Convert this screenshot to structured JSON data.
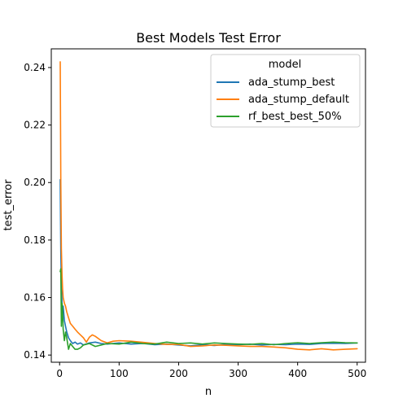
{
  "chart_data": {
    "type": "line",
    "title": "Best Models Test Error",
    "xlabel": "n",
    "ylabel": "test_error",
    "xlim": [
      -14,
      514
    ],
    "ylim": [
      0.1375,
      0.2465
    ],
    "xticks": [
      0,
      100,
      200,
      300,
      400,
      500
    ],
    "yticks": [
      0.14,
      0.16,
      0.18,
      0.2,
      0.22,
      0.24
    ],
    "ytick_labels": [
      "0.14",
      "0.16",
      "0.18",
      "0.20",
      "0.22",
      "0.24"
    ],
    "legend": {
      "title": "model",
      "position": "top-right"
    },
    "series": [
      {
        "name": "ada_stump_best",
        "color": "#1f77b4",
        "x": [
          1,
          2,
          3,
          4,
          5,
          6,
          8,
          10,
          12,
          15,
          18,
          22,
          26,
          30,
          35,
          40,
          50,
          60,
          70,
          80,
          100,
          120,
          140,
          160,
          180,
          200,
          220,
          240,
          260,
          280,
          300,
          320,
          340,
          360,
          380,
          400,
          420,
          440,
          460,
          480,
          500
        ],
        "y": [
          0.201,
          0.176,
          0.165,
          0.158,
          0.155,
          0.157,
          0.152,
          0.15,
          0.148,
          0.146,
          0.145,
          0.144,
          0.1445,
          0.1438,
          0.1442,
          0.1435,
          0.1442,
          0.1445,
          0.144,
          0.1438,
          0.1442,
          0.1438,
          0.144,
          0.1436,
          0.1438,
          0.1435,
          0.1432,
          0.1436,
          0.1433,
          0.1437,
          0.1436,
          0.1438,
          0.1435,
          0.1437,
          0.1436,
          0.1438,
          0.1437,
          0.144,
          0.1441,
          0.144,
          0.1442
        ]
      },
      {
        "name": "ada_stump_default",
        "color": "#ff7f0e",
        "x": [
          1,
          2,
          3,
          4,
          5,
          6,
          8,
          10,
          12,
          15,
          18,
          22,
          26,
          30,
          35,
          40,
          45,
          50,
          55,
          60,
          70,
          80,
          90,
          100,
          120,
          140,
          160,
          180,
          200,
          220,
          240,
          260,
          280,
          300,
          320,
          340,
          360,
          380,
          400,
          420,
          440,
          460,
          480,
          500
        ],
        "y": [
          0.242,
          0.2,
          0.177,
          0.168,
          0.163,
          0.16,
          0.158,
          0.157,
          0.155,
          0.153,
          0.151,
          0.15,
          0.149,
          0.148,
          0.147,
          0.146,
          0.1445,
          0.1462,
          0.147,
          0.1465,
          0.145,
          0.1442,
          0.1448,
          0.145,
          0.1448,
          0.1444,
          0.144,
          0.1437,
          0.1437,
          0.143,
          0.1432,
          0.1435,
          0.1434,
          0.1432,
          0.143,
          0.143,
          0.1428,
          0.1425,
          0.142,
          0.1418,
          0.1422,
          0.1418,
          0.142,
          0.1422
        ]
      },
      {
        "name": "rf_best_best_50%",
        "color": "#2ca02c",
        "x": [
          1,
          2,
          3,
          4,
          5,
          6,
          8,
          10,
          12,
          15,
          18,
          22,
          26,
          30,
          35,
          40,
          50,
          60,
          70,
          80,
          100,
          120,
          140,
          160,
          180,
          200,
          220,
          240,
          260,
          280,
          300,
          320,
          340,
          360,
          380,
          400,
          420,
          440,
          460,
          480,
          500
        ],
        "y": [
          0.169,
          0.17,
          0.15,
          0.158,
          0.155,
          0.149,
          0.145,
          0.148,
          0.146,
          0.142,
          0.144,
          0.143,
          0.142,
          0.142,
          0.1425,
          0.1435,
          0.144,
          0.143,
          0.1435,
          0.144,
          0.1438,
          0.1445,
          0.144,
          0.1438,
          0.1445,
          0.144,
          0.1442,
          0.1438,
          0.1442,
          0.144,
          0.1438,
          0.1437,
          0.144,
          0.1436,
          0.144,
          0.1443,
          0.144,
          0.1443,
          0.1445,
          0.1443,
          0.1442
        ]
      }
    ]
  }
}
